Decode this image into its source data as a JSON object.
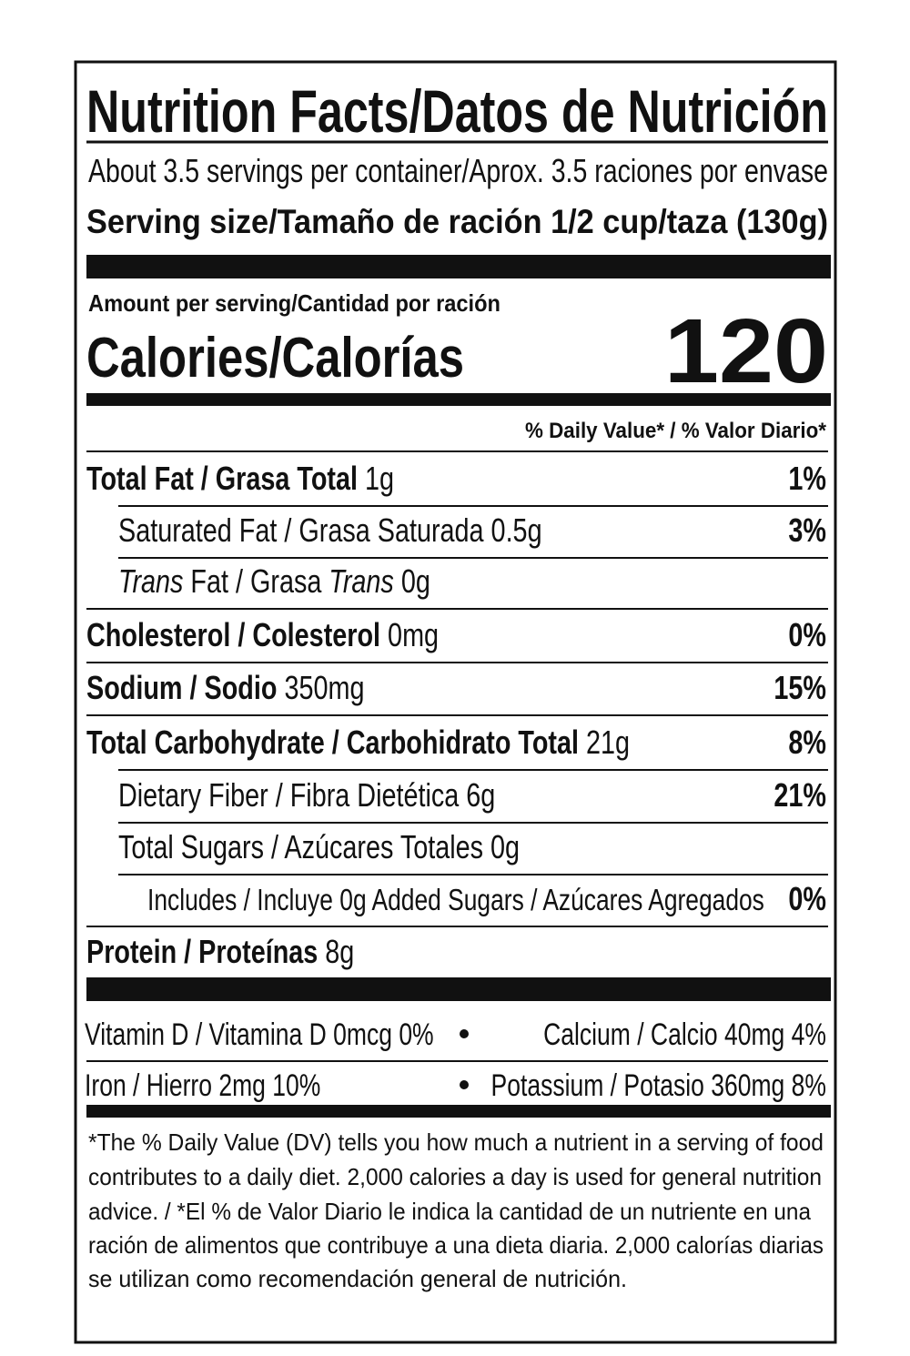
{
  "title": "Nutrition Facts/Datos de Nutrición",
  "servings": "About 3.5 servings per container/Aprox. 3.5 raciones por envase",
  "serving_size": "Serving size/Tamaño de ración 1/2 cup/taza (130g)",
  "amount_per_serving": "Amount per serving/Cantidad por ración",
  "calories_label": "Calories/Calorías",
  "calories": "120",
  "daily_value_header": "% Daily Value* / % Valor Diario*",
  "nutrients": [
    {
      "parts": [
        {
          "text": "Total Fat / Grasa Total ",
          "style": "bold"
        },
        {
          "text": "1g",
          "style": "normal"
        }
      ],
      "dv": "1%"
    },
    {
      "parts": [
        {
          "text": "Saturated Fat / Grasa Saturada 0.5g",
          "style": "normal"
        }
      ],
      "dv": "3%"
    },
    {
      "parts": [
        {
          "text": "Trans",
          "style": "italic"
        },
        {
          "text": " Fat / Grasa ",
          "style": "normal"
        },
        {
          "text": "Trans",
          "style": "italic"
        },
        {
          "text": " 0g",
          "style": "normal"
        }
      ]
    },
    {
      "parts": [
        {
          "text": "Cholesterol / Colesterol ",
          "style": "bold"
        },
        {
          "text": "0mg",
          "style": "normal"
        }
      ],
      "dv": "0%"
    },
    {
      "parts": [
        {
          "text": "Sodium / Sodio ",
          "style": "bold"
        },
        {
          "text": "350mg",
          "style": "normal"
        }
      ],
      "dv": "15%"
    },
    {
      "parts": [
        {
          "text": "Total Carbohydrate / Carbohidrato Total ",
          "style": "bold"
        },
        {
          "text": "21g",
          "style": "normal"
        }
      ],
      "dv": "8%"
    },
    {
      "parts": [
        {
          "text": "Dietary Fiber / Fibra Dietética 6g",
          "style": "normal"
        }
      ],
      "dv": "21%"
    },
    {
      "parts": [
        {
          "text": "Total Sugars / Azúcares Totales 0g",
          "style": "normal"
        }
      ]
    },
    {
      "parts": [
        {
          "text": "Includes / Incluye 0g Added Sugars / Azúcares Agregados",
          "style": "normal"
        }
      ],
      "dv": "0%"
    },
    {
      "parts": [
        {
          "text": "Protein / Proteínas ",
          "style": "bold"
        },
        {
          "text": "8g",
          "style": "normal"
        }
      ]
    }
  ],
  "vitamins": [
    [
      "Vitamin D / Vitamina D 0mcg 0%",
      "Calcium / Calcio 40mg 4%"
    ],
    [
      "Iron / Hierro 2mg 10%",
      "Potassium / Potasio 360mg 8%"
    ]
  ],
  "footnote": [
    "*The % Daily Value (DV) tells you how much a nutrient in a serving of food",
    "contributes to a daily diet. 2,000 calories a day is used for general nutrition",
    "advice. / *El % de Valor Diario le indica la cantidad de un nutriente en una",
    "ración de alimentos que contribuye a una dieta diaria. 2,000 calorías diarias",
    "se utilizan como recomendación general de nutrición."
  ]
}
